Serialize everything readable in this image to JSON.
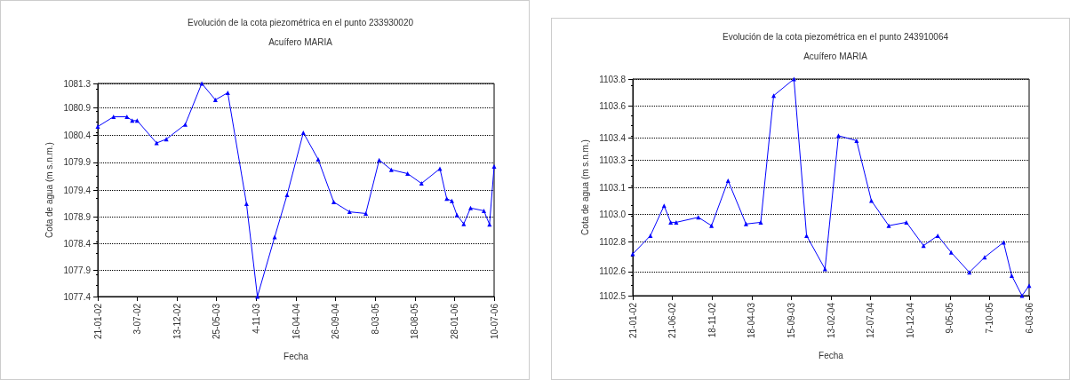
{
  "chart_data": [
    {
      "type": "line",
      "title": "Evolución de la cota piezométrica en el punto 233930020",
      "subtitle": "Acuífero MARIA",
      "xlabel": "Fecha",
      "ylabel": "Cota de agua (m s.n.m.)",
      "marker": "triangle",
      "grid": "y",
      "series": [
        {
          "color": "#0000ff",
          "x": [
            "2002-01-21",
            "2002-03-27",
            "2002-05-21",
            "2002-06-12",
            "2002-07-02",
            "2002-09-20",
            "2002-10-30",
            "2003-01-16",
            "2003-03-25",
            "2003-05-20",
            "2003-07-10",
            "2003-09-25",
            "2003-11-09",
            "2004-01-19",
            "2004-03-10",
            "2004-05-16",
            "2004-07-16",
            "2004-09-18",
            "2004-11-22",
            "2005-01-28",
            "2005-03-24",
            "2005-05-13",
            "2005-07-19",
            "2005-09-14",
            "2005-11-29",
            "2005-12-27",
            "2006-01-17",
            "2006-02-07",
            "2006-03-07",
            "2006-04-04",
            "2006-05-29",
            "2006-06-21",
            "2006-07-10"
          ],
          "values": [
            1080.51,
            1080.69,
            1080.69,
            1080.62,
            1080.62,
            1080.21,
            1080.28,
            1080.55,
            1081.3,
            1081.0,
            1081.13,
            1079.1,
            1077.4,
            1078.49,
            1079.26,
            1080.4,
            1079.91,
            1079.13,
            1078.95,
            1078.92,
            1079.9,
            1079.72,
            1079.65,
            1079.47,
            1079.74,
            1079.19,
            1079.15,
            1078.89,
            1078.73,
            1079.02,
            1078.97,
            1078.72,
            1079.78
          ]
        }
      ],
      "xlim": [
        "2002-01-21",
        "2006-07-10"
      ],
      "xticks": [
        {
          "value": "2002-01-21",
          "label": "21-01-02"
        },
        {
          "value": "2002-07-03",
          "label": "3-07-02"
        },
        {
          "value": "2002-12-13",
          "label": "13-12-02"
        },
        {
          "value": "2003-05-25",
          "label": "25-05-03"
        },
        {
          "value": "2003-11-04",
          "label": "4-11-03"
        },
        {
          "value": "2004-04-16",
          "label": "16-04-04"
        },
        {
          "value": "2004-09-26",
          "label": "26-09-04"
        },
        {
          "value": "2005-03-08",
          "label": "8-03-05"
        },
        {
          "value": "2005-08-18",
          "label": "18-08-05"
        },
        {
          "value": "2006-01-28",
          "label": "28-01-06"
        },
        {
          "value": "2006-07-10",
          "label": "10-07-06"
        }
      ],
      "ylim": [
        1077.4,
        1081.3
      ],
      "yticks": [
        1077.4,
        {
          "value": 1077.8875,
          "label": "1077.9"
        },
        {
          "value": 1078.375,
          "label": "1078.4"
        },
        {
          "value": 1078.8625,
          "label": "1078.9"
        },
        {
          "value": 1079.35,
          "label": "1079.4"
        },
        {
          "value": 1079.855,
          "label": "1079.9"
        },
        {
          "value": 1080.355,
          "label": "1080.4"
        },
        {
          "value": 1080.855,
          "label": "1080.9"
        },
        1081.3
      ]
    },
    {
      "type": "line",
      "title": "Evolución de la cota piezométrica en el punto 243910064",
      "subtitle": "Acuífero MARIA",
      "xlabel": "Fecha",
      "ylabel": "Cota de agua (m s.n.m.)",
      "marker": "triangle",
      "grid": "y",
      "series": [
        {
          "color": "#0000ff",
          "x": [
            "2002-01-21",
            "2002-03-29",
            "2002-05-20",
            "2002-06-14",
            "2002-07-05",
            "2002-09-27",
            "2002-11-16",
            "2003-01-18",
            "2003-03-27",
            "2003-05-22",
            "2003-07-10",
            "2003-09-25",
            "2003-11-12",
            "2004-01-21",
            "2004-03-12",
            "2004-05-20",
            "2004-07-15",
            "2004-09-19",
            "2004-11-25",
            "2005-01-29",
            "2005-03-24",
            "2005-05-14",
            "2005-07-22",
            "2005-09-18",
            "2005-11-29",
            "2005-12-30",
            "2006-02-07",
            "2006-03-06"
          ],
          "values": [
            1102.75,
            1102.86,
            1103.04,
            1102.94,
            1102.94,
            1102.97,
            1102.92,
            1103.19,
            1102.93,
            1102.94,
            1103.7,
            1103.8,
            1102.86,
            1102.66,
            1103.46,
            1103.43,
            1103.07,
            1102.92,
            1102.94,
            1102.8,
            1102.86,
            1102.76,
            1102.64,
            1102.73,
            1102.82,
            1102.62,
            1102.5,
            1102.56
          ]
        }
      ],
      "xlim": [
        "2002-01-21",
        "2006-03-06"
      ],
      "xticks": [
        {
          "value": "2002-01-21",
          "label": "21-01-02"
        },
        {
          "value": "2002-06-21",
          "label": "21-06-02"
        },
        {
          "value": "2002-11-18",
          "label": "18-11-02"
        },
        {
          "value": "2003-04-18",
          "label": "18-04-03"
        },
        {
          "value": "2003-09-15",
          "label": "15-09-03"
        },
        {
          "value": "2004-02-13",
          "label": "13-02-04"
        },
        {
          "value": "2004-07-12",
          "label": "12-07-04"
        },
        {
          "value": "2004-12-10",
          "label": "10-12-04"
        },
        {
          "value": "2005-05-09",
          "label": "9-05-05"
        },
        {
          "value": "2005-10-07",
          "label": "7-10-05"
        },
        {
          "value": "2006-03-06",
          "label": "6-03-06"
        }
      ],
      "ylim": [
        1102.5,
        1103.8
      ],
      "yticks": [
        1102.5,
        {
          "value": 1102.645,
          "label": "1102.6"
        },
        {
          "value": 1102.825,
          "label": "1102.8"
        },
        {
          "value": 1102.9875,
          "label": "1103.0"
        },
        {
          "value": 1103.15,
          "label": "1103.1"
        },
        {
          "value": 1103.3125,
          "label": "1103.3"
        },
        {
          "value": 1103.445,
          "label": "1103.4"
        },
        {
          "value": 1103.6375,
          "label": "1103.6"
        },
        1103.8
      ]
    }
  ]
}
